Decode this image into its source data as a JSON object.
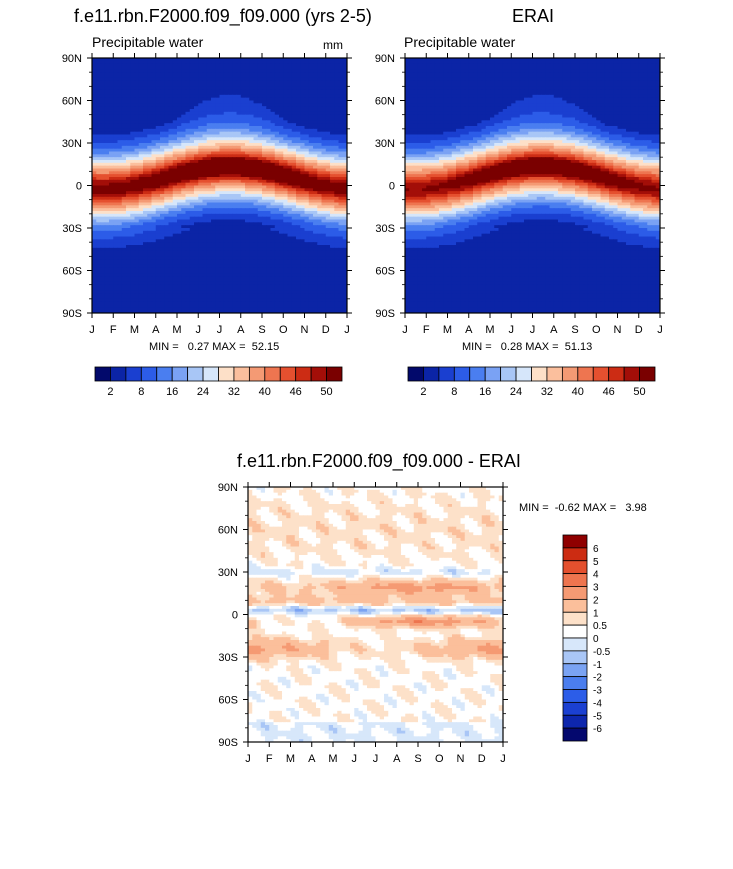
{
  "colors": {
    "abs_palette": [
      "#02096b",
      "#0b24a6",
      "#1a3fd0",
      "#2c5ce8",
      "#4a7ef0",
      "#7aa2f4",
      "#a8c6f6",
      "#d6e6fa",
      "#fde0c8",
      "#fbbf9d",
      "#f49a74",
      "#ee7550",
      "#e5502f",
      "#cc2c14",
      "#a30e08",
      "#7a0000"
    ],
    "diff_palette": [
      "#04086e",
      "#0d26ad",
      "#1b40d2",
      "#2c5de8",
      "#4b7eee",
      "#7aa3f3",
      "#a9c6f6",
      "#d7e7fa",
      "#ffffff",
      "#fde1c9",
      "#fbbf9b",
      "#f59a73",
      "#ee754f",
      "#e4502e",
      "#cc2c12",
      "#8f0000"
    ]
  },
  "month_labels": [
    "J",
    "F",
    "M",
    "A",
    "M",
    "J",
    "J",
    "A",
    "S",
    "O",
    "N",
    "D",
    "J"
  ],
  "lat_labels": [
    "90N",
    "60N",
    "30N",
    "0",
    "30S",
    "60S",
    "90S"
  ],
  "abs_cb_labels": [
    "2",
    "8",
    "16",
    "24",
    "32",
    "40",
    "46",
    "50"
  ],
  "diff_cb_labels": [
    "6",
    "5",
    "4",
    "3",
    "2",
    "1",
    "0.5",
    "0",
    "-0.5",
    "-1",
    "-2",
    "-3",
    "-4",
    "-5",
    "-6"
  ],
  "panels": {
    "model": {
      "title": "f.e11.rbn.F2000.f09_f09.000 (yrs 2-5)",
      "subtitle": "Precipitable water",
      "units": "mm",
      "stats": "MIN =   0.27 MAX =  52.15"
    },
    "obs": {
      "title": "ERAI",
      "subtitle": "Precipitable water",
      "units": "",
      "stats": "MIN =   0.28 MAX =  51.13"
    },
    "diff": {
      "title": "f.e11.rbn.F2000.f09_f09.000 - ERAI",
      "stats": "MIN =  -0.62 MAX =   3.98"
    }
  },
  "chart_data": [
    {
      "type": "heatmap",
      "title": "f.e11.rbn.F2000.f09_f09.000 (yrs 2-5)",
      "subtitle": "Precipitable water",
      "units": "mm",
      "x": [
        "J",
        "F",
        "M",
        "A",
        "M",
        "J",
        "J",
        "A",
        "S",
        "O",
        "N",
        "D",
        "J"
      ],
      "y_range": [
        -90,
        90
      ],
      "colorbar_levels": [
        2,
        8,
        16,
        24,
        32,
        40,
        46,
        50
      ],
      "min": 0.27,
      "max": 52.15,
      "field_desc_values": {
        "equator_peak": 52,
        "itcz_peak_month": "Jul-Aug",
        "polar_value": 2
      }
    },
    {
      "type": "heatmap",
      "title": "ERAI",
      "subtitle": "Precipitable water",
      "x": [
        "J",
        "F",
        "M",
        "A",
        "M",
        "J",
        "J",
        "A",
        "S",
        "O",
        "N",
        "D",
        "J"
      ],
      "y_range": [
        -90,
        90
      ],
      "colorbar_levels": [
        2,
        8,
        16,
        24,
        32,
        40,
        46,
        50
      ],
      "min": 0.28,
      "max": 51.13
    },
    {
      "type": "heatmap",
      "title": "f.e11.rbn.F2000.f09_f09.000 - ERAI",
      "x": [
        "J",
        "F",
        "M",
        "A",
        "M",
        "J",
        "J",
        "A",
        "S",
        "O",
        "N",
        "D",
        "J"
      ],
      "y_range": [
        -90,
        90
      ],
      "colorbar_levels": [
        -6,
        -5,
        -4,
        -3,
        -2,
        -1,
        -0.5,
        0,
        0.5,
        1,
        2,
        3,
        4,
        5,
        6
      ],
      "min": -0.62,
      "max": 3.98
    }
  ]
}
